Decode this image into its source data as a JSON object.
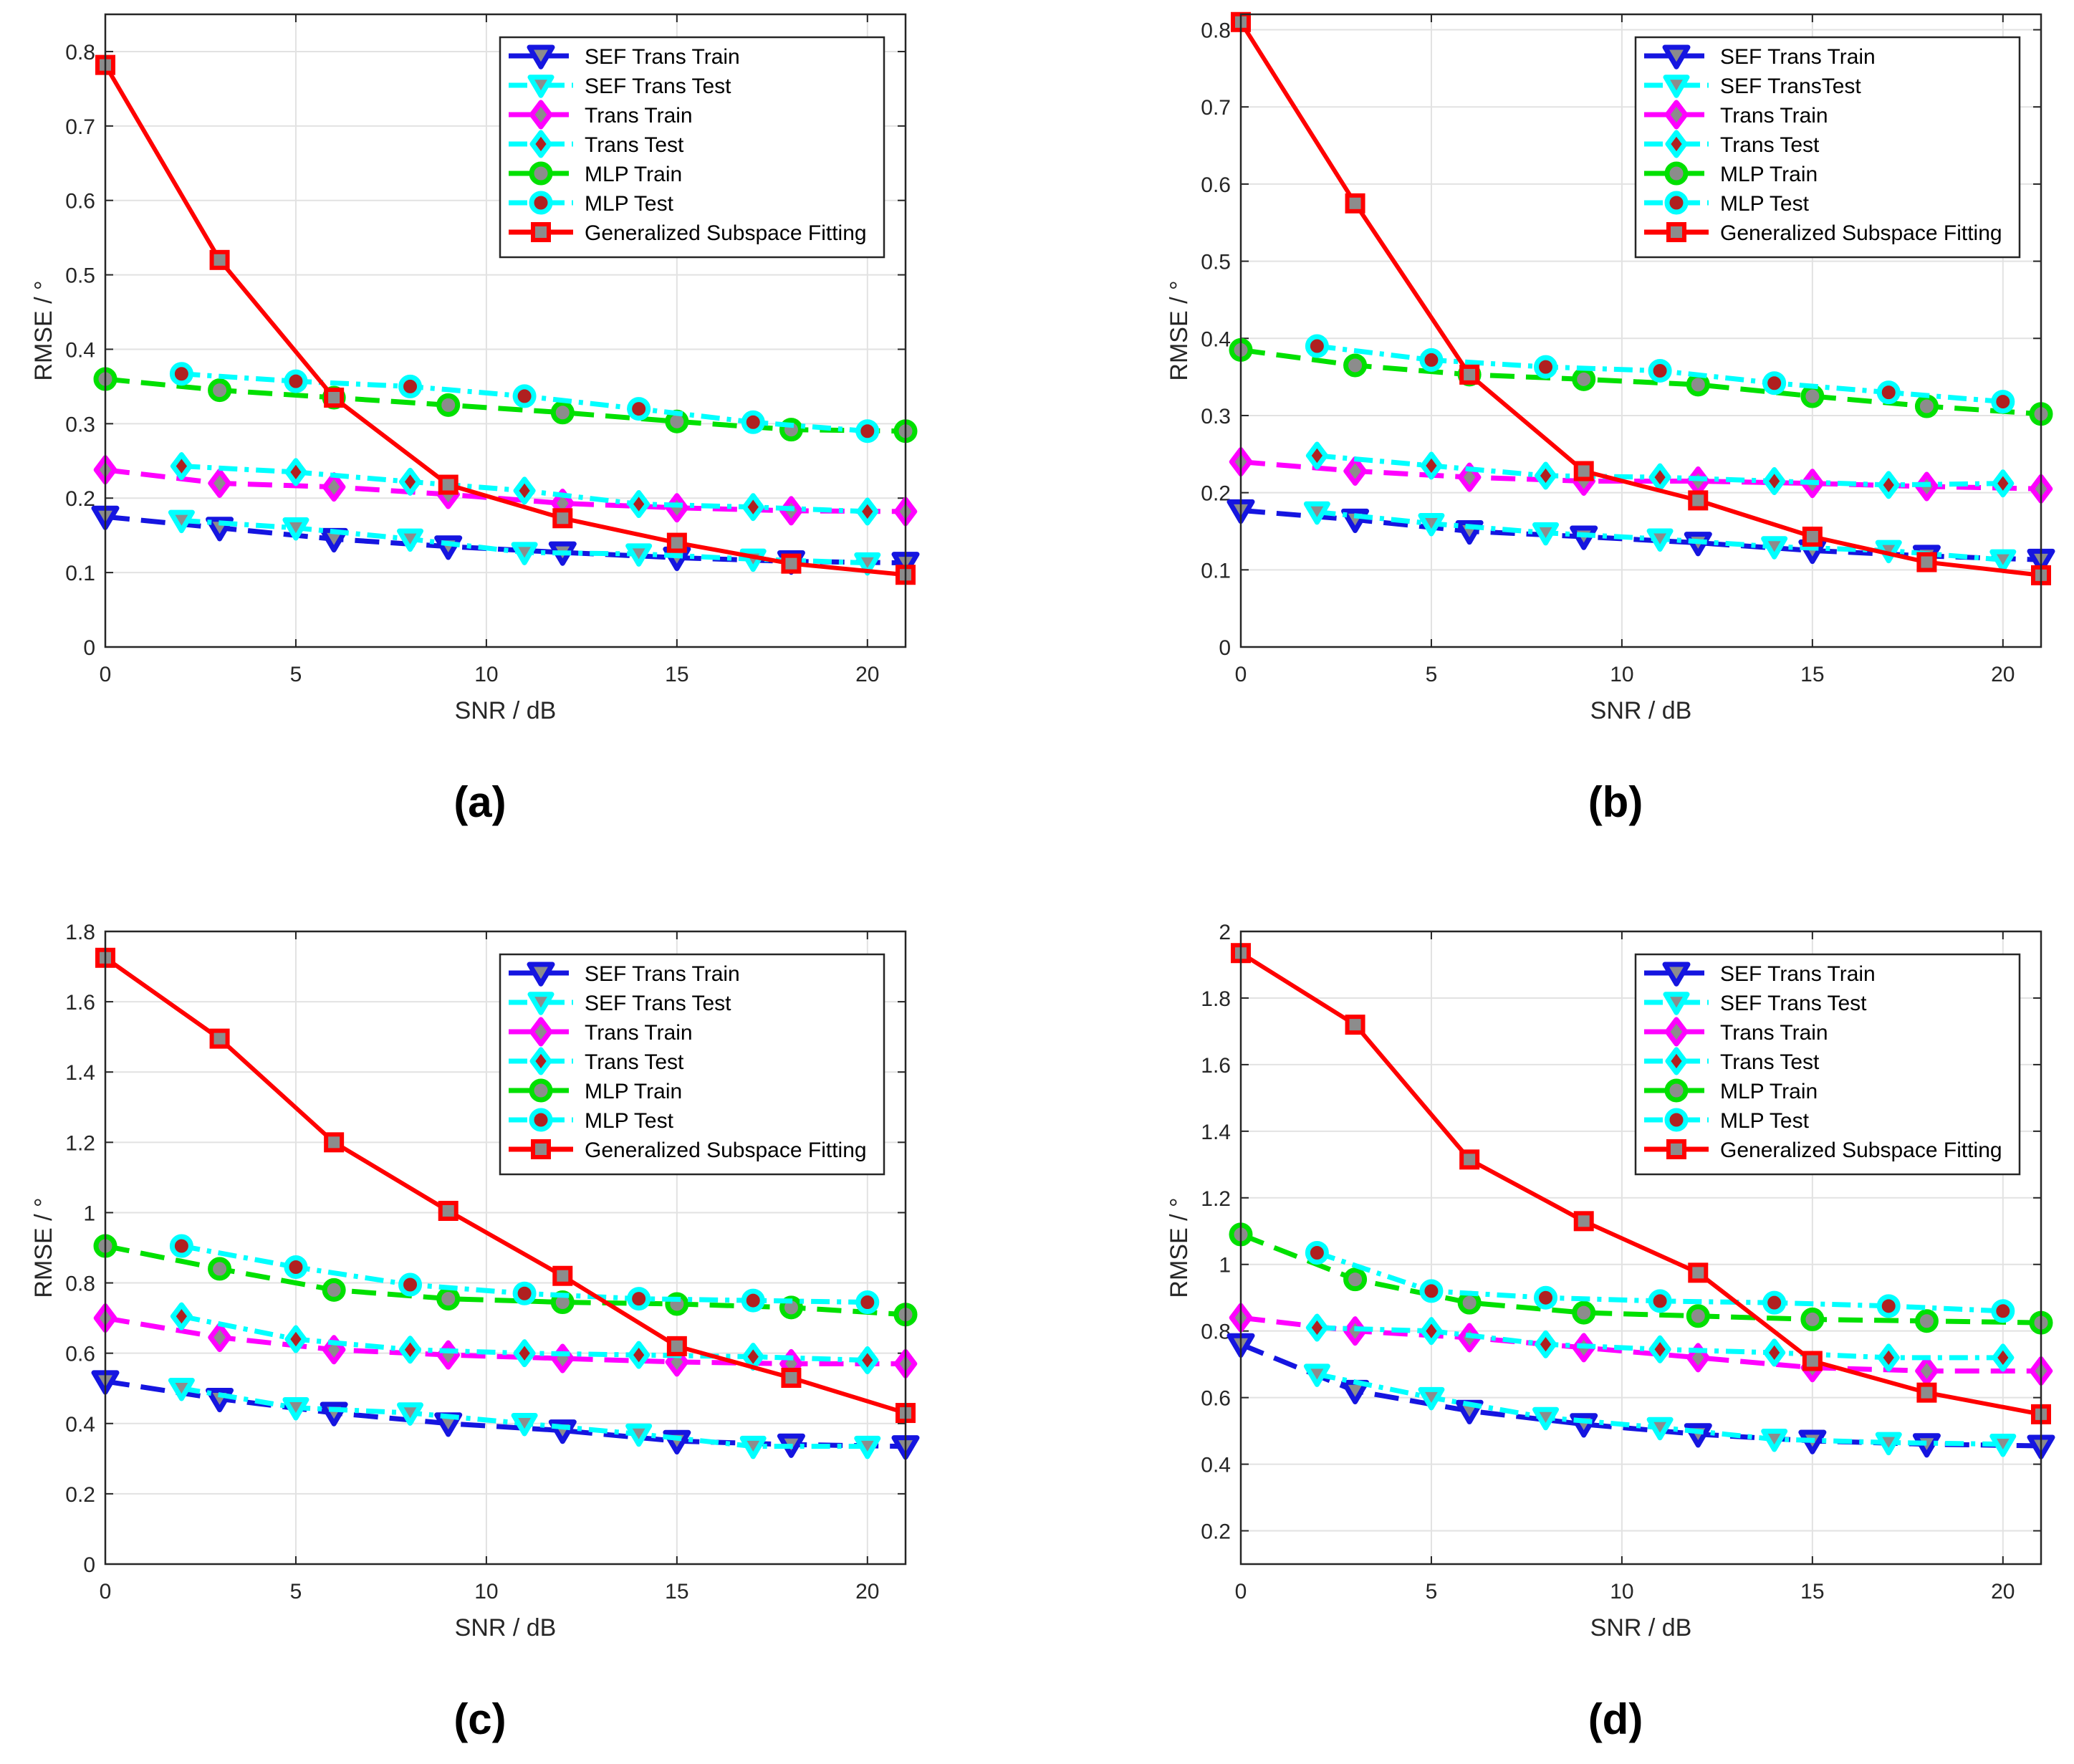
{
  "figure": {
    "panels": [
      {
        "label": "(a)",
        "legend_labels": [
          "SEF Trans Train",
          "SEF Trans Test",
          "Trans Train",
          "Trans Test",
          "MLP Train",
          "MLP Test",
          "Generalized Subspace Fitting"
        ]
      },
      {
        "label": "(b)",
        "legend_labels": [
          "SEF Trans Train",
          "SEF TransTest",
          "Trans Train",
          "Trans Test",
          "MLP Train",
          "MLP Test",
          "Generalized Subspace Fitting"
        ]
      },
      {
        "label": "(c)",
        "legend_labels": [
          "SEF Trans Train",
          "SEF Trans Test",
          "Trans Train",
          "Trans Test",
          "MLP Train",
          "MLP Test",
          "Generalized Subspace Fitting"
        ]
      },
      {
        "label": "(d)",
        "legend_labels": [
          "SEF Trans Train",
          "SEF Trans Test",
          "Trans Train",
          "Trans Test",
          "MLP Train",
          "MLP Test",
          "Generalized Subspace Fitting"
        ]
      }
    ]
  },
  "colors": {
    "sef_train": "#1515e0",
    "sef_test": "#00ffff",
    "trans_train": "#ff00ff",
    "trans_test": "#00ffff",
    "mlp_train": "#00e000",
    "mlp_test": "#00ffff",
    "gsf": "#ff0000",
    "marker_inner_gray": "#8c8c8c",
    "marker_inner_dark": "#b02020"
  },
  "chart_data": [
    {
      "type": "line",
      "xlabel": "SNR / dB",
      "ylabel": "RMSE / °",
      "xlim": [
        0,
        21
      ],
      "ylim": [
        0,
        0.85
      ],
      "xticks": [
        0,
        5,
        10,
        15,
        20
      ],
      "yticks": [
        0,
        0.1,
        0.2,
        0.3,
        0.4,
        0.5,
        0.6,
        0.7,
        0.8
      ],
      "ytick_labels": [
        "0",
        "0.1",
        "0.2",
        "0.3",
        "0.4",
        "0.5",
        "0.6",
        "0.7",
        "0.8"
      ],
      "grid": true,
      "legend": "top-right",
      "series": [
        {
          "name": "SEF Trans Train",
          "x": [
            0,
            3,
            6,
            9,
            12,
            15,
            18,
            21
          ],
          "values": [
            0.175,
            0.16,
            0.145,
            0.135,
            0.127,
            0.12,
            0.115,
            0.113
          ]
        },
        {
          "name": "SEF Trans Test",
          "x": [
            2,
            5,
            8,
            11,
            14,
            17,
            20
          ],
          "values": [
            0.17,
            0.16,
            0.145,
            0.127,
            0.125,
            0.118,
            0.113
          ]
        },
        {
          "name": "Trans Train",
          "x": [
            0,
            3,
            6,
            9,
            12,
            15,
            18,
            21
          ],
          "values": [
            0.238,
            0.22,
            0.215,
            0.205,
            0.193,
            0.187,
            0.183,
            0.182
          ]
        },
        {
          "name": "Trans Test",
          "x": [
            2,
            5,
            8,
            11,
            14,
            17,
            20
          ],
          "values": [
            0.243,
            0.235,
            0.222,
            0.21,
            0.192,
            0.188,
            0.182
          ]
        },
        {
          "name": "MLP Train",
          "x": [
            0,
            3,
            6,
            9,
            12,
            15,
            18,
            21
          ],
          "values": [
            0.36,
            0.345,
            0.335,
            0.325,
            0.315,
            0.303,
            0.292,
            0.29
          ]
        },
        {
          "name": "MLP Test",
          "x": [
            2,
            5,
            8,
            11,
            14,
            17,
            20
          ],
          "values": [
            0.367,
            0.357,
            0.35,
            0.337,
            0.32,
            0.302,
            0.29
          ]
        },
        {
          "name": "Generalized Subspace Fitting",
          "x": [
            0,
            3,
            6,
            9,
            12,
            15,
            18,
            21
          ],
          "values": [
            0.782,
            0.52,
            0.335,
            0.218,
            0.173,
            0.14,
            0.112,
            0.097
          ]
        }
      ]
    },
    {
      "type": "line",
      "xlabel": "SNR / dB",
      "ylabel": "RMSE / °",
      "xlim": [
        0,
        21
      ],
      "ylim": [
        0,
        0.82
      ],
      "xticks": [
        0,
        5,
        10,
        15,
        20
      ],
      "yticks": [
        0,
        0.1,
        0.2,
        0.3,
        0.4,
        0.5,
        0.6,
        0.7,
        0.8
      ],
      "ytick_labels": [
        "0",
        "0.1",
        "0.2",
        "0.3",
        "0.4",
        "0.5",
        "0.6",
        "0.7",
        "0.8"
      ],
      "grid": true,
      "legend": "top-right",
      "series": [
        {
          "name": "SEF Trans Train",
          "x": [
            0,
            3,
            6,
            9,
            12,
            15,
            18,
            21
          ],
          "values": [
            0.177,
            0.165,
            0.15,
            0.143,
            0.135,
            0.125,
            0.118,
            0.113
          ]
        },
        {
          "name": "SEF TransTest",
          "x": [
            2,
            5,
            8,
            11,
            14,
            17,
            20
          ],
          "values": [
            0.175,
            0.16,
            0.148,
            0.14,
            0.13,
            0.125,
            0.113
          ]
        },
        {
          "name": "Trans Train",
          "x": [
            0,
            3,
            6,
            9,
            12,
            15,
            18,
            21
          ],
          "values": [
            0.24,
            0.228,
            0.22,
            0.215,
            0.215,
            0.212,
            0.208,
            0.205
          ]
        },
        {
          "name": "Trans Test",
          "x": [
            2,
            5,
            8,
            11,
            14,
            17,
            20
          ],
          "values": [
            0.248,
            0.235,
            0.222,
            0.22,
            0.215,
            0.21,
            0.212
          ]
        },
        {
          "name": "MLP Train",
          "x": [
            0,
            3,
            6,
            9,
            12,
            15,
            18,
            21
          ],
          "values": [
            0.385,
            0.365,
            0.353,
            0.347,
            0.34,
            0.325,
            0.312,
            0.302
          ]
        },
        {
          "name": "MLP Test",
          "x": [
            2,
            5,
            8,
            11,
            14,
            17,
            20
          ],
          "values": [
            0.39,
            0.372,
            0.363,
            0.358,
            0.342,
            0.33,
            0.318
          ]
        },
        {
          "name": "Generalized Subspace Fitting",
          "x": [
            0,
            3,
            6,
            9,
            12,
            15,
            18,
            21
          ],
          "values": [
            0.81,
            0.575,
            0.353,
            0.228,
            0.19,
            0.143,
            0.11,
            0.093
          ]
        }
      ]
    },
    {
      "type": "line",
      "xlabel": "SNR / dB",
      "ylabel": "RMSE / °",
      "xlim": [
        0,
        21
      ],
      "ylim": [
        0,
        1.8
      ],
      "xticks": [
        0,
        5,
        10,
        15,
        20
      ],
      "yticks": [
        0,
        0.2,
        0.4,
        0.6,
        0.8,
        1.0,
        1.2,
        1.4,
        1.6,
        1.8
      ],
      "ytick_labels": [
        "0",
        "0.2",
        "0.4",
        "0.6",
        "0.8",
        "1",
        "1.2",
        "1.4",
        "1.6",
        "1.8"
      ],
      "grid": true,
      "legend": "top-right",
      "series": [
        {
          "name": "SEF Trans Train",
          "x": [
            0,
            3,
            6,
            9,
            12,
            15,
            18,
            21
          ],
          "values": [
            0.52,
            0.47,
            0.43,
            0.4,
            0.38,
            0.35,
            0.34,
            0.335
          ]
        },
        {
          "name": "SEF Trans Test",
          "x": [
            2,
            5,
            8,
            11,
            14,
            17,
            20
          ],
          "values": [
            0.5,
            0.445,
            0.43,
            0.4,
            0.37,
            0.335,
            0.335
          ]
        },
        {
          "name": "Trans Train",
          "x": [
            0,
            3,
            6,
            9,
            12,
            15,
            18,
            21
          ],
          "values": [
            0.7,
            0.645,
            0.61,
            0.595,
            0.585,
            0.575,
            0.57,
            0.57
          ]
        },
        {
          "name": "Trans Test",
          "x": [
            2,
            5,
            8,
            11,
            14,
            17,
            20
          ],
          "values": [
            0.705,
            0.64,
            0.61,
            0.6,
            0.595,
            0.59,
            0.58
          ]
        },
        {
          "name": "MLP Train",
          "x": [
            0,
            3,
            6,
            9,
            12,
            15,
            18,
            21
          ],
          "values": [
            0.905,
            0.84,
            0.78,
            0.755,
            0.745,
            0.74,
            0.73,
            0.71
          ]
        },
        {
          "name": "MLP Test",
          "x": [
            2,
            5,
            8,
            11,
            14,
            17,
            20
          ],
          "values": [
            0.905,
            0.845,
            0.795,
            0.77,
            0.755,
            0.75,
            0.745
          ]
        },
        {
          "name": "Generalized Subspace Fitting",
          "x": [
            0,
            3,
            6,
            9,
            12,
            15,
            18,
            21
          ],
          "values": [
            1.725,
            1.495,
            1.2,
            1.005,
            0.82,
            0.62,
            0.53,
            0.43
          ]
        }
      ]
    },
    {
      "type": "line",
      "xlabel": "SNR / dB",
      "ylabel": "RMSE / °",
      "xlim": [
        0,
        21
      ],
      "ylim": [
        0.1,
        2.0
      ],
      "xticks": [
        0,
        5,
        10,
        15,
        20
      ],
      "yticks": [
        0.2,
        0.4,
        0.6,
        0.8,
        1.0,
        1.2,
        1.4,
        1.6,
        1.8,
        2.0
      ],
      "ytick_labels": [
        "0.2",
        "0.4",
        "0.6",
        "0.8",
        "1",
        "1.2",
        "1.4",
        "1.6",
        "1.8",
        "2"
      ],
      "grid": true,
      "legend": "top-right",
      "series": [
        {
          "name": "SEF Trans Train",
          "x": [
            0,
            3,
            6,
            9,
            12,
            15,
            18,
            21
          ],
          "values": [
            0.76,
            0.62,
            0.56,
            0.52,
            0.49,
            0.47,
            0.46,
            0.455
          ]
        },
        {
          "name": "SEF Trans Test",
          "x": [
            2,
            5,
            8,
            11,
            14,
            17,
            20
          ],
          "values": [
            0.67,
            0.6,
            0.54,
            0.51,
            0.475,
            0.465,
            0.46
          ]
        },
        {
          "name": "Trans Train",
          "x": [
            0,
            3,
            6,
            9,
            12,
            15,
            18,
            21
          ],
          "values": [
            0.84,
            0.8,
            0.78,
            0.75,
            0.72,
            0.69,
            0.68,
            0.68
          ]
        },
        {
          "name": "Trans Test",
          "x": [
            2,
            5,
            8,
            11,
            14,
            17,
            20
          ],
          "values": [
            0.81,
            0.8,
            0.76,
            0.745,
            0.735,
            0.72,
            0.72
          ]
        },
        {
          "name": "MLP Train",
          "x": [
            0,
            3,
            6,
            9,
            12,
            15,
            18,
            21
          ],
          "values": [
            1.09,
            0.955,
            0.885,
            0.855,
            0.845,
            0.835,
            0.83,
            0.825
          ]
        },
        {
          "name": "MLP Test",
          "x": [
            2,
            5,
            8,
            11,
            14,
            17,
            20
          ],
          "values": [
            1.035,
            0.92,
            0.9,
            0.89,
            0.885,
            0.875,
            0.86
          ]
        },
        {
          "name": "Generalized Subspace Fitting",
          "x": [
            0,
            3,
            6,
            9,
            12,
            15,
            18,
            21
          ],
          "values": [
            1.935,
            1.72,
            1.315,
            1.13,
            0.975,
            0.71,
            0.615,
            0.55
          ]
        }
      ]
    }
  ]
}
